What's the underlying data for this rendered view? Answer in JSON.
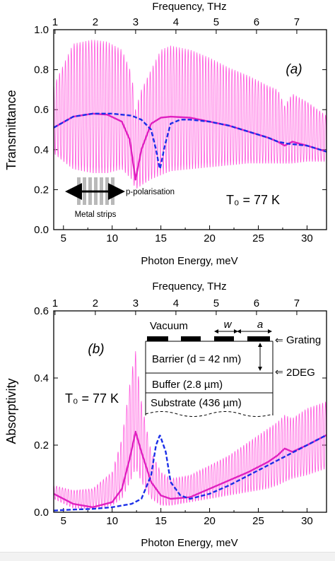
{
  "chart_data": [
    {
      "type": "line",
      "panel_label": "(a)",
      "xlabel": "Photon Energy, meV",
      "top_axis_label": "Frequency, THz",
      "ylabel": "Transmittance",
      "xlim": [
        4,
        32
      ],
      "ylim": [
        0,
        1.0
      ],
      "x_ticks": [
        5,
        10,
        15,
        20,
        25,
        30
      ],
      "top_ticks": [
        1,
        2,
        3,
        4,
        5,
        6,
        7
      ],
      "y_ticks": [
        0.0,
        0.2,
        0.4,
        0.6,
        0.8,
        1.0
      ],
      "y_tick_labels": [
        "0.0",
        "0.2",
        "0.4",
        "0.6",
        "0.8",
        "1.0"
      ],
      "temperature_label": "T₀ = 77 K",
      "inset": {
        "arrow_label": "p-polarisation",
        "strip_label": "Metal strips"
      },
      "series": [
        {
          "style": "thin-oscillating",
          "color": "#ff55dd",
          "x": [
            4,
            6,
            8,
            9.5,
            11,
            12,
            12.4,
            13,
            14,
            15,
            16,
            18,
            20,
            22,
            24,
            26,
            27,
            27.7,
            28.5,
            30,
            32
          ],
          "y": [
            0.55,
            0.58,
            0.58,
            0.578,
            0.56,
            0.45,
            0.25,
            0.38,
            0.5,
            0.54,
            0.56,
            0.56,
            0.54,
            0.52,
            0.5,
            0.47,
            0.45,
            0.42,
            0.44,
            0.42,
            0.39
          ],
          "envelope_upper": [
            0.72,
            0.93,
            0.95,
            0.94,
            0.9,
            0.78,
            0.6,
            0.7,
            0.8,
            0.9,
            0.92,
            0.9,
            0.86,
            0.81,
            0.77,
            0.72,
            0.7,
            0.62,
            0.68,
            0.64,
            0.57
          ],
          "envelope_lower": [
            0.38,
            0.3,
            0.28,
            0.28,
            0.3,
            0.25,
            0.2,
            0.22,
            0.25,
            0.27,
            0.29,
            0.3,
            0.31,
            0.32,
            0.33,
            0.33,
            0.33,
            0.33,
            0.33,
            0.34,
            0.34
          ]
        },
        {
          "style": "solid",
          "color": "#e020c0",
          "x": [
            4,
            6,
            8,
            9.5,
            11,
            11.8,
            12.4,
            13,
            14,
            15,
            16,
            18,
            20,
            22,
            24,
            26,
            27,
            27.7,
            28.5,
            30,
            32
          ],
          "y": [
            0.51,
            0.565,
            0.58,
            0.575,
            0.54,
            0.45,
            0.25,
            0.4,
            0.53,
            0.56,
            0.565,
            0.56,
            0.54,
            0.52,
            0.49,
            0.46,
            0.44,
            0.42,
            0.44,
            0.42,
            0.39
          ]
        },
        {
          "style": "dashed",
          "color": "#1a2ee8",
          "x": [
            4,
            6,
            8,
            10,
            12,
            13,
            14,
            14.5,
            14.9,
            15.4,
            16,
            17,
            18,
            20,
            22,
            24,
            26,
            27,
            28,
            30,
            32
          ],
          "y": [
            0.51,
            0.565,
            0.58,
            0.58,
            0.57,
            0.55,
            0.5,
            0.4,
            0.3,
            0.42,
            0.53,
            0.55,
            0.55,
            0.54,
            0.52,
            0.49,
            0.46,
            0.44,
            0.43,
            0.42,
            0.39
          ]
        }
      ]
    },
    {
      "type": "line",
      "panel_label": "(b)",
      "xlabel": "Photon Energy, meV",
      "top_axis_label": "Frequency, THz",
      "ylabel": "Absorptivity",
      "xlim": [
        4,
        32
      ],
      "ylim": [
        0,
        0.6
      ],
      "x_ticks": [
        5,
        10,
        15,
        20,
        25,
        30
      ],
      "top_ticks": [
        1,
        2,
        3,
        4,
        5,
        6,
        7
      ],
      "y_ticks": [
        0.0,
        0.2,
        0.4,
        0.6
      ],
      "y_tick_labels": [
        "0.0",
        "0.2",
        "0.4",
        "0.6"
      ],
      "temperature_label": "T₀ = 77 K",
      "inset": {
        "vacuum": "Vacuum",
        "w": "w",
        "a": "a",
        "grating": "Grating",
        "barrier": "Barrier (d = 42 nm)",
        "twodeg": "2DEG",
        "buffer": "Buffer (2.8 µm)",
        "substrate": "Substrate (436 µm)"
      },
      "series": [
        {
          "style": "thin-oscillating",
          "color": "#ff55dd",
          "x": [
            4,
            6,
            8,
            10,
            11,
            12,
            12.4,
            13,
            14,
            15,
            16,
            18,
            20,
            22,
            24,
            26,
            27,
            27.7,
            28.5,
            30,
            32
          ],
          "y": [
            0.055,
            0.025,
            0.015,
            0.04,
            0.09,
            0.2,
            0.24,
            0.17,
            0.09,
            0.055,
            0.04,
            0.045,
            0.07,
            0.095,
            0.12,
            0.15,
            0.17,
            0.19,
            0.18,
            0.2,
            0.23
          ],
          "envelope_upper": [
            0.08,
            0.065,
            0.07,
            0.12,
            0.22,
            0.42,
            0.48,
            0.33,
            0.18,
            0.12,
            0.1,
            0.11,
            0.14,
            0.17,
            0.21,
            0.25,
            0.27,
            0.29,
            0.28,
            0.31,
            0.33
          ],
          "envelope_lower": [
            0.04,
            0.012,
            0.01,
            0.02,
            0.04,
            0.1,
            0.13,
            0.09,
            0.04,
            0.02,
            0.02,
            0.03,
            0.04,
            0.05,
            0.06,
            0.07,
            0.08,
            0.09,
            0.1,
            0.11,
            0.13
          ]
        },
        {
          "style": "solid",
          "color": "#e020c0",
          "x": [
            4,
            6,
            8,
            10,
            11,
            11.8,
            12.4,
            13,
            14,
            15,
            16,
            18,
            20,
            22,
            24,
            26,
            27,
            27.7,
            28.5,
            30,
            32
          ],
          "y": [
            0.055,
            0.025,
            0.015,
            0.03,
            0.07,
            0.16,
            0.24,
            0.18,
            0.09,
            0.05,
            0.04,
            0.045,
            0.07,
            0.095,
            0.12,
            0.15,
            0.17,
            0.19,
            0.18,
            0.2,
            0.23
          ]
        },
        {
          "style": "dashed",
          "color": "#1a2ee8",
          "x": [
            4,
            6,
            8,
            10,
            12,
            13,
            14,
            14.5,
            14.9,
            15.5,
            16,
            17,
            18,
            20,
            22,
            24,
            26,
            28,
            30,
            32
          ],
          "y": [
            0.005,
            0.008,
            0.01,
            0.015,
            0.025,
            0.04,
            0.11,
            0.2,
            0.23,
            0.18,
            0.09,
            0.05,
            0.04,
            0.055,
            0.08,
            0.11,
            0.14,
            0.17,
            0.2,
            0.23
          ]
        }
      ]
    }
  ]
}
